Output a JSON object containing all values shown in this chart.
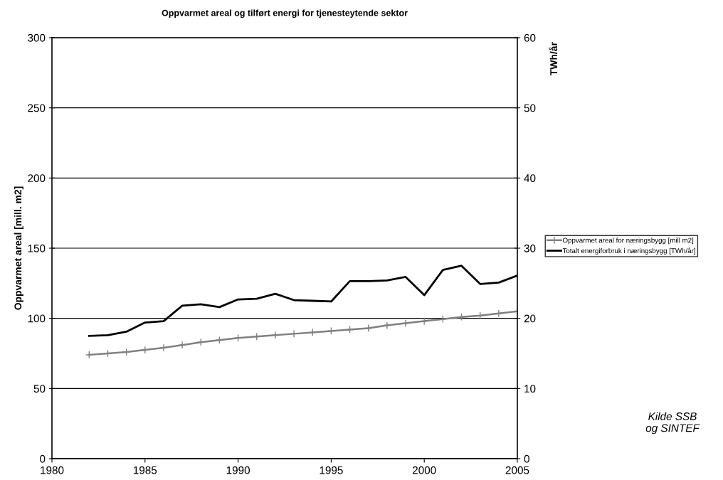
{
  "chart_data": {
    "type": "line",
    "title": "Oppvarmet areal og tilført energi for tjenesteytende sektor",
    "ylabel": "Oppvarmet areal [mill. m2]",
    "y2label": "TWh/år",
    "x": [
      1982,
      1983,
      1984,
      1985,
      1986,
      1987,
      1988,
      1989,
      1990,
      1991,
      1992,
      1993,
      1994,
      1995,
      1996,
      1997,
      1998,
      1999,
      2000,
      2001,
      2002,
      2003,
      2004,
      2005
    ],
    "series": [
      {
        "name": "Oppvarmet areal for næringsbygg [mill m2]",
        "color": "#808080",
        "marker": "cross",
        "values": [
          74,
          75,
          76,
          77.5,
          79,
          81,
          83,
          84.5,
          86,
          87,
          88,
          89,
          90,
          91,
          92,
          93,
          95,
          96.5,
          98,
          99.5,
          101,
          102,
          103.5,
          105
        ]
      },
      {
        "name": "Totalt energiforbruk i næringsbygg [TWh/år]",
        "color": "#000000",
        "marker": "none",
        "axis": "y2",
        "values": [
          17.5,
          17.6,
          18.1,
          19.4,
          19.6,
          21.8,
          22.0,
          21.6,
          22.7,
          22.8,
          23.5,
          22.6,
          22.5,
          22.4,
          25.3,
          25.3,
          25.4,
          25.9,
          23.3,
          26.9,
          27.5,
          24.9,
          25.1,
          26.1
        ]
      }
    ],
    "xlim": [
      1980,
      2005
    ],
    "xticks": [
      1980,
      1985,
      1990,
      1995,
      2000,
      2005
    ],
    "ylim": [
      0,
      300
    ],
    "yticks": [
      0,
      50,
      100,
      150,
      200,
      250,
      300
    ],
    "y2lim": [
      0,
      60
    ],
    "y2ticks": [
      0,
      10,
      20,
      30,
      40,
      50,
      60
    ],
    "grid": "y",
    "legend": "right",
    "line_style": "solid",
    "annotations": [
      "Kilde SSB\nog SINTEF"
    ]
  }
}
